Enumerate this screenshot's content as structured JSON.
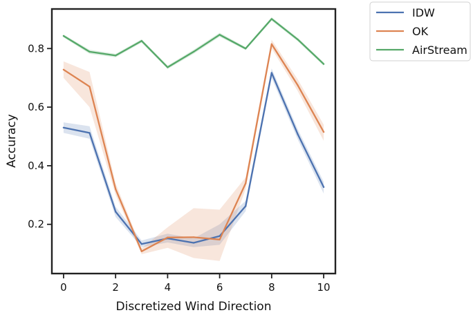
{
  "chart_data": {
    "type": "line",
    "title": "",
    "xlabel": "Discretized Wind Direction",
    "ylabel": "Accuracy",
    "xlim": [
      -0.45,
      10.45
    ],
    "ylim": [
      0.032,
      0.935
    ],
    "x_ticks": [
      0,
      2,
      4,
      6,
      8,
      10
    ],
    "y_ticks": [
      0.2,
      0.4,
      0.6,
      0.8
    ],
    "x_tick_labels": [
      "0",
      "2",
      "4",
      "6",
      "8",
      "10"
    ],
    "y_tick_labels": [
      "0.2",
      "0.4",
      "0.6",
      "0.8"
    ],
    "grid": false,
    "legend_position": "outside-top-right",
    "x": [
      0,
      1,
      2,
      3,
      4,
      5,
      6,
      7,
      8,
      9,
      10
    ],
    "series": [
      {
        "name": "IDW",
        "color": "#4c72b0",
        "values": [
          0.53,
          0.512,
          0.243,
          0.133,
          0.152,
          0.137,
          0.16,
          0.262,
          0.717,
          0.508,
          0.327
        ],
        "ci_lower": [
          0.512,
          0.492,
          0.225,
          0.122,
          0.138,
          0.122,
          0.13,
          0.245,
          0.7,
          0.49,
          0.305
        ],
        "ci_upper": [
          0.548,
          0.535,
          0.26,
          0.145,
          0.168,
          0.152,
          0.2,
          0.28,
          0.732,
          0.525,
          0.345
        ]
      },
      {
        "name": "OK",
        "color": "#dd8452",
        "values": [
          0.728,
          0.67,
          0.32,
          0.108,
          0.155,
          0.156,
          0.148,
          0.34,
          0.815,
          0.675,
          0.515
        ],
        "ci_lower": [
          0.7,
          0.6,
          0.3,
          0.098,
          0.12,
          0.085,
          0.075,
          0.32,
          0.8,
          0.655,
          0.485
        ],
        "ci_upper": [
          0.756,
          0.72,
          0.34,
          0.118,
          0.19,
          0.255,
          0.25,
          0.36,
          0.83,
          0.695,
          0.54
        ]
      },
      {
        "name": "AirStream",
        "color": "#55a868",
        "values": [
          0.843,
          0.789,
          0.776,
          0.826,
          0.736,
          0.789,
          0.847,
          0.8,
          0.901,
          0.831,
          0.747
        ],
        "ci_lower": [
          0.838,
          0.782,
          0.77,
          0.82,
          0.73,
          0.782,
          0.84,
          0.795,
          0.895,
          0.825,
          0.741
        ],
        "ci_upper": [
          0.848,
          0.796,
          0.782,
          0.832,
          0.742,
          0.796,
          0.854,
          0.805,
          0.907,
          0.837,
          0.753
        ]
      }
    ]
  }
}
